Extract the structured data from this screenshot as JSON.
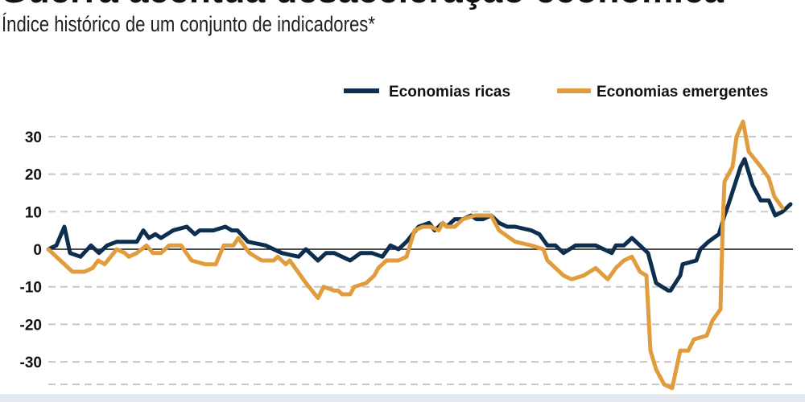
{
  "chart_data": {
    "type": "line",
    "title": "Guerra acentua desaceleração econômica",
    "subtitle": "Índice histórico de um conjunto de indicadores*",
    "xlabel": "",
    "ylabel": "",
    "ylim": [
      -37,
      36
    ],
    "yticks": [
      30,
      20,
      10,
      0,
      -10,
      -20,
      -30
    ],
    "ytick_labels": [
      "30",
      "20",
      "10",
      "0",
      "-10",
      "-20",
      "-30"
    ],
    "grid": true,
    "legend_position": "top-right",
    "colors": {
      "rich": "#0d2e4e",
      "emerging": "#e19c3d",
      "zero": "#111111",
      "grid": "#c8c8c8"
    },
    "series": [
      {
        "name": "Economias ricas",
        "x": [
          0,
          1,
          2,
          2.7,
          4,
          5.3,
          6.3,
          7.3,
          8.5,
          11,
          11.8,
          12.5,
          13.3,
          14,
          15.5,
          17.2,
          18.2,
          18.8,
          20.5,
          22,
          22.8,
          23.5,
          24.8,
          27,
          29,
          31.1,
          32,
          33.5,
          34.5,
          35.5,
          37.5,
          38.8,
          40.2,
          41.5,
          42.5,
          43.5,
          44.5,
          46,
          47.3,
          48,
          49,
          49.5,
          50.5,
          51.5,
          52.5,
          53.2,
          54,
          55,
          56,
          57,
          58,
          60,
          61,
          62,
          63,
          64,
          65.5,
          68,
          69,
          70,
          70.5,
          71.5,
          72.5,
          73.5,
          74.5,
          75.5,
          77,
          77.3,
          78.5,
          78.8,
          80.5,
          81,
          82,
          83.3,
          84,
          84.5,
          86,
          86.5,
          87.5,
          88.5,
          89.5,
          90.3,
          91.2,
          92.2
        ],
        "y": [
          0,
          1,
          6,
          -1,
          -2,
          1,
          -1,
          1,
          2,
          2,
          5,
          3,
          4,
          3,
          5,
          6,
          4,
          5,
          5,
          6,
          5,
          5,
          2,
          1,
          -1,
          -2,
          0,
          -3,
          -1,
          -1,
          -3,
          -1,
          -1,
          -2,
          1,
          0,
          2,
          6,
          7,
          5,
          7,
          6,
          8,
          8,
          9,
          8,
          8,
          9,
          7,
          6,
          6,
          5,
          4,
          1,
          1,
          -1,
          1,
          1,
          0,
          -1,
          1,
          1,
          3,
          1,
          -1,
          -9,
          -11,
          -11,
          -7,
          -4,
          -3,
          0,
          2,
          4,
          9,
          12,
          22,
          24,
          17,
          13,
          13,
          9,
          10,
          12
        ]
      },
      {
        "name": "Economias emergentes",
        "x": [
          0,
          1.5,
          3,
          4.5,
          5.5,
          6.2,
          7,
          8.5,
          9.5,
          10,
          11,
          12.2,
          13,
          14,
          15,
          16.5,
          17.8,
          19.5,
          20.8,
          21.8,
          23,
          23.6,
          25,
          26.5,
          28,
          28.5,
          29.5,
          30,
          31,
          32,
          33.5,
          34.2,
          35.5,
          36,
          36.5,
          37.5,
          38,
          39.5,
          40.5,
          41,
          42,
          43.5,
          44.5,
          45.5,
          46.5,
          47.5,
          48.5,
          49,
          49.5,
          50.5,
          51.5,
          53,
          54,
          55,
          56,
          58,
          60,
          61.5,
          62,
          64,
          65,
          66.5,
          68,
          69.5,
          70.5,
          71.5,
          72.5,
          73.5,
          74.3,
          74.8,
          75.5,
          76.5,
          77.5,
          78.5,
          79.5,
          80.2,
          81.8,
          82.5,
          83.5,
          83.8,
          84,
          85,
          85.5,
          86.3,
          87,
          88.5,
          89.5,
          90.2,
          91.2
        ],
        "y": [
          0,
          -3,
          -6,
          -6,
          -5,
          -3,
          -4,
          0,
          -1,
          -2,
          -1,
          1,
          -1,
          -1,
          1,
          1,
          -3,
          -4,
          -4,
          1,
          1,
          3,
          -1,
          -3,
          -3,
          -2,
          -4,
          -3,
          -6,
          -9,
          -13,
          -10,
          -11,
          -11,
          -12,
          -12,
          -10,
          -9,
          -7,
          -5,
          -3,
          -3,
          -2,
          5,
          6,
          6,
          5,
          7,
          6,
          6,
          8,
          9,
          9,
          9,
          5,
          2,
          1,
          0,
          -3,
          -7,
          -8,
          -7,
          -5,
          -8,
          -5,
          -3,
          -2,
          -6,
          -7,
          -27,
          -32,
          -36,
          -37,
          -27,
          -27,
          -24,
          -23,
          -19,
          -16,
          8,
          18,
          22,
          30,
          34,
          26,
          22,
          19,
          14,
          11
        ]
      }
    ]
  }
}
